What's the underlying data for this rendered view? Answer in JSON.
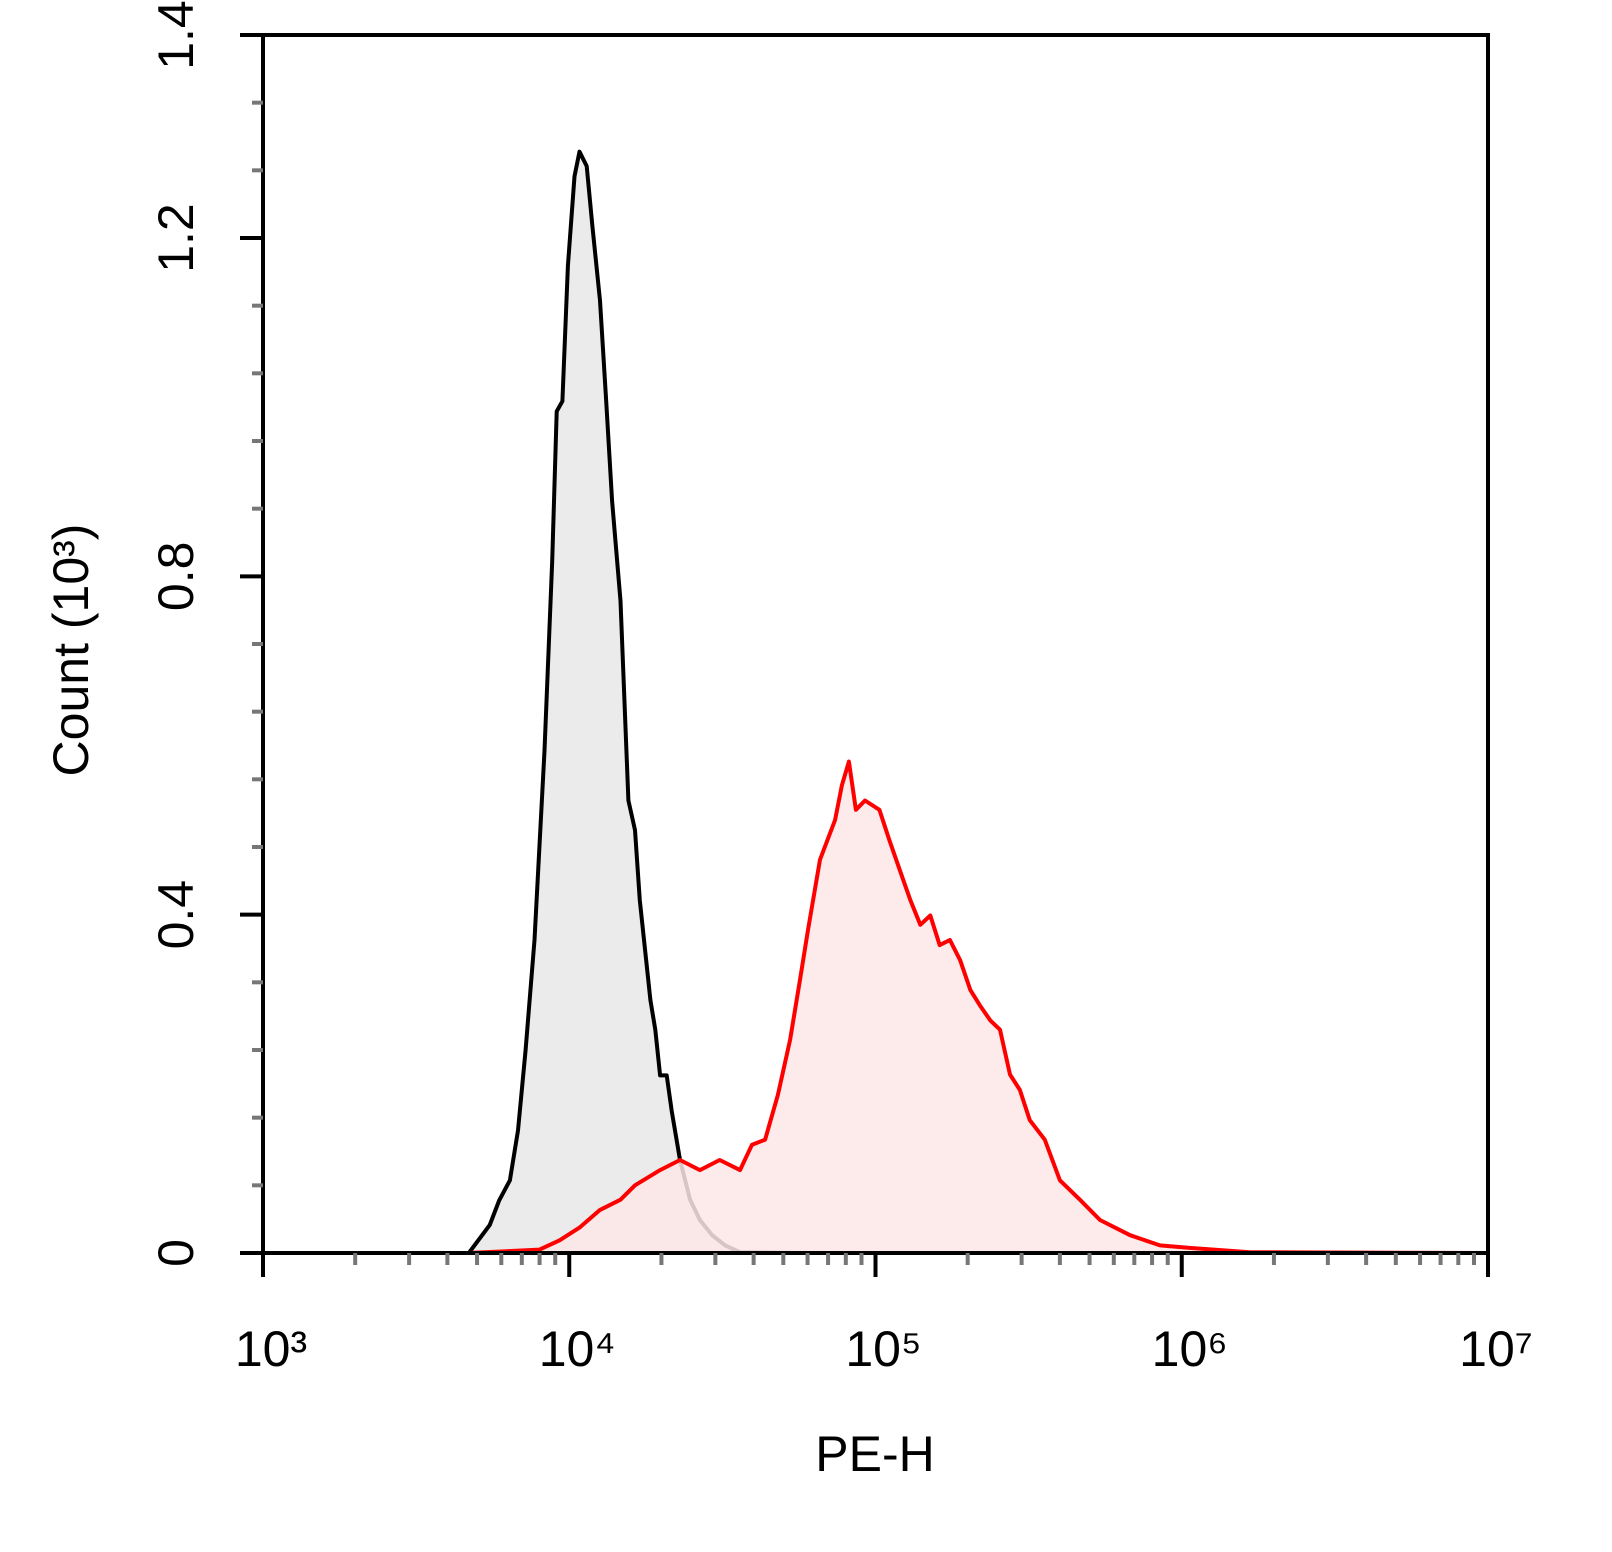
{
  "chart_data": {
    "type": "area",
    "x_label": "PE-H",
    "y_label": "Count (10³)",
    "xscale": "log",
    "xlim": [
      1000,
      10000000
    ],
    "xticks": [
      {
        "value": 1000,
        "label": "10³"
      },
      {
        "value": 10000,
        "label": "10⁴"
      },
      {
        "value": 100000,
        "label": "10⁵"
      },
      {
        "value": 1000000,
        "label": "10⁶"
      },
      {
        "value": 10000000,
        "label": "10⁷"
      }
    ],
    "xminorticks": [
      2000,
      3000,
      4000,
      5000,
      6000,
      7000,
      8000,
      9000,
      20000,
      30000,
      40000,
      50000,
      60000,
      70000,
      80000,
      90000,
      200000,
      300000,
      400000,
      500000,
      600000,
      700000,
      800000,
      900000,
      2000000,
      3000000,
      4000000,
      5000000,
      6000000,
      7000000,
      8000000,
      9000000
    ],
    "ylim": [
      0,
      1.44
    ],
    "yticks": [
      0,
      0.4,
      0.8,
      1.2,
      {
        "value": 1.44,
        "label": "1.4"
      }
    ],
    "yminorticks": [
      0.08,
      0.16,
      0.24,
      0.32,
      0.48,
      0.56,
      0.64,
      0.72,
      0.88,
      0.96,
      1.04,
      1.12,
      1.28,
      1.36
    ],
    "series": [
      {
        "color": "#000000",
        "fill": "#e8e8e8",
        "x": [
          1000,
          4700,
          5500,
          5900,
          6400,
          6800,
          7200,
          7700,
          8300,
          8800,
          9100,
          9500,
          9900,
          10400,
          10800,
          11400,
          11900,
          12600,
          13200,
          13800,
          14700,
          15600,
          16400,
          17000,
          18400,
          19100,
          19800,
          20800,
          21600,
          23000,
          24800,
          26700,
          29300,
          32300,
          36100,
          56600
        ],
        "values": [
          0,
          0,
          0.033,
          0.062,
          0.086,
          0.145,
          0.24,
          0.37,
          0.594,
          0.818,
          0.995,
          1.007,
          1.167,
          1.273,
          1.302,
          1.285,
          1.214,
          1.126,
          1.007,
          0.889,
          0.771,
          0.535,
          0.5,
          0.417,
          0.299,
          0.264,
          0.21,
          0.21,
          0.168,
          0.11,
          0.063,
          0.039,
          0.021,
          0.009,
          0.001,
          0
        ]
      },
      {
        "color": "#ff0000",
        "fill": "#fde6e8",
        "x": [
          4700,
          8000,
          9300,
          10800,
          12600,
          14700,
          16400,
          19800,
          23000,
          26700,
          31000,
          36100,
          39500,
          43600,
          48000,
          52600,
          56700,
          60200,
          65900,
          73800,
          77700,
          81900,
          86300,
          92400,
          103000,
          111000,
          120000,
          130000,
          140000,
          151000,
          162000,
          175000,
          189000,
          204000,
          219000,
          237000,
          255000,
          275000,
          296000,
          319000,
          357000,
          400000,
          465000,
          541000,
          678000,
          849000,
          1060000,
          1670000,
          10000000
        ],
        "values": [
          0,
          0.004,
          0.015,
          0.03,
          0.051,
          0.063,
          0.08,
          0.098,
          0.11,
          0.098,
          0.11,
          0.098,
          0.128,
          0.134,
          0.187,
          0.252,
          0.323,
          0.382,
          0.465,
          0.512,
          0.553,
          0.581,
          0.524,
          0.535,
          0.524,
          0.488,
          0.453,
          0.417,
          0.388,
          0.399,
          0.364,
          0.37,
          0.346,
          0.311,
          0.293,
          0.275,
          0.264,
          0.211,
          0.193,
          0.157,
          0.134,
          0.086,
          0.063,
          0.039,
          0.021,
          0.009,
          0.006,
          0.001,
          0
        ]
      }
    ]
  }
}
